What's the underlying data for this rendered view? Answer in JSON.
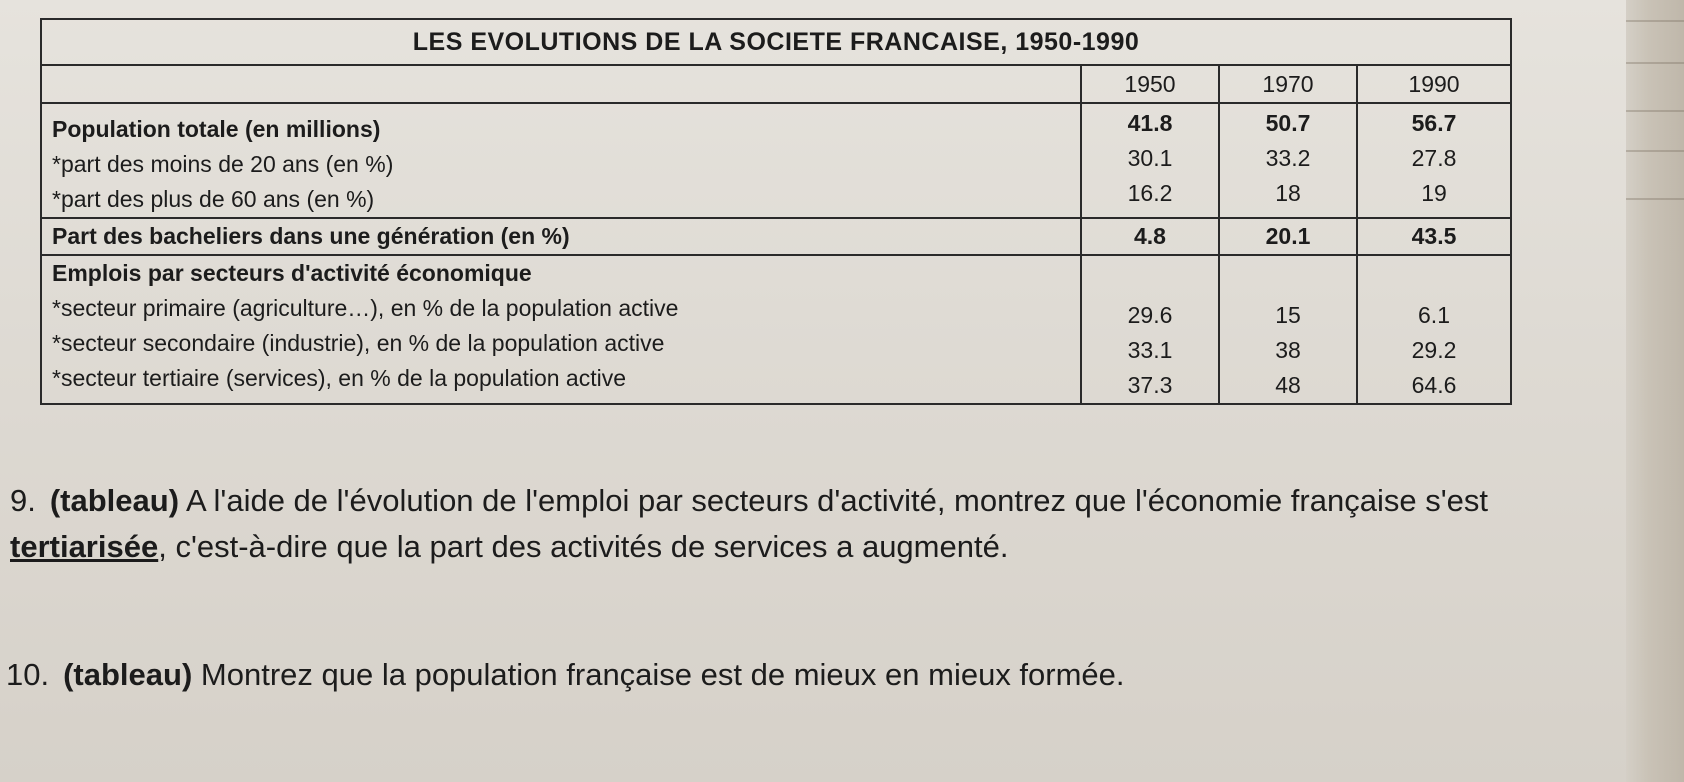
{
  "table": {
    "title": "LES EVOLUTIONS DE LA SOCIETE FRANCAISE, 1950-1990",
    "years": [
      "1950",
      "1970",
      "1990"
    ],
    "population_block": {
      "labels": [
        "Population totale (en millions)",
        "*part des moins de 20 ans (en %)",
        "*part des plus de 60 ans (en %)"
      ],
      "rows": [
        [
          "41.8",
          "50.7",
          "56.7"
        ],
        [
          "30.1",
          "33.2",
          "27.8"
        ],
        [
          "16.2",
          "18",
          "19"
        ]
      ]
    },
    "bacheliers": {
      "label": "Part des bacheliers dans une génération (en %)",
      "values": [
        "4.8",
        "20.1",
        "43.5"
      ]
    },
    "emplois_block": {
      "heading": "Emplois par secteurs d'activité économique",
      "labels": [
        "*secteur primaire (agriculture…), en % de la population active",
        "*secteur secondaire (industrie), en % de la population active",
        "*secteur tertiaire (services), en % de la population active"
      ],
      "rows": [
        [
          "29.6",
          "15",
          "6.1"
        ],
        [
          "33.1",
          "38",
          "29.2"
        ],
        [
          "37.3",
          "48",
          "64.6"
        ]
      ]
    }
  },
  "questions": {
    "q9": {
      "number": "9.",
      "bold_tag": "(tableau)",
      "text_a": " A l'aide de l'évolution de l'emploi par secteurs d'activité, montrez que l'économie française s'est ",
      "underlined": "tertiarisée",
      "text_b": ", c'est-à-dire que la part des activités de services a augmenté."
    },
    "q10": {
      "number": "10.",
      "bold_tag": "(tableau)",
      "text": " Montrez que la population française est de mieux en mieux formée."
    }
  }
}
